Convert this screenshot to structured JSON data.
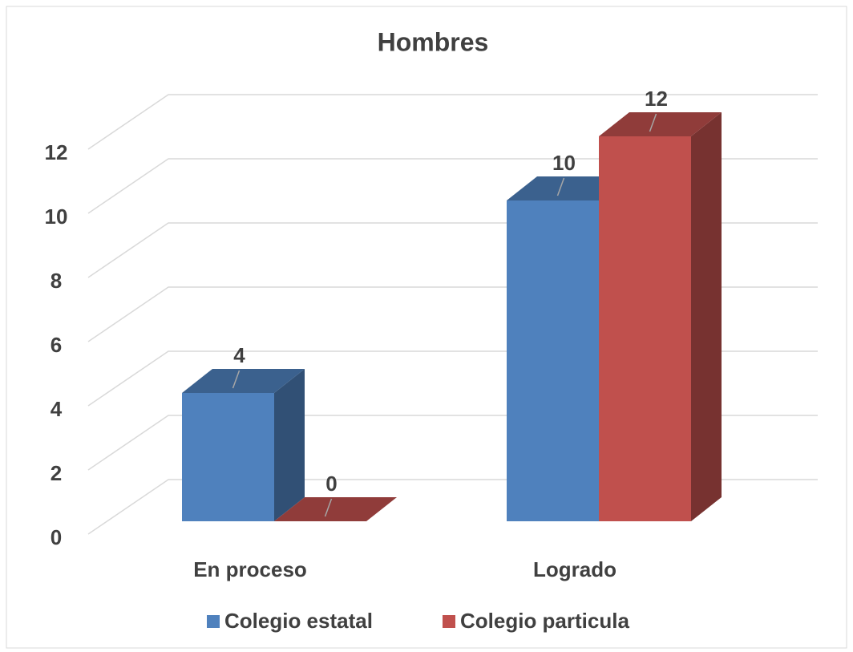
{
  "chart_data": {
    "type": "bar3d",
    "title": "Hombres",
    "categories": [
      "En proceso",
      "Logrado"
    ],
    "series": [
      {
        "name": "Colegio estatal",
        "color": "#4f81bd",
        "values": [
          4,
          10
        ]
      },
      {
        "name": "Colegio particula",
        "color": "#c0504d",
        "values": [
          0,
          12
        ]
      }
    ],
    "ylim": [
      0,
      12
    ],
    "yticks": [
      0,
      2,
      4,
      6,
      8,
      10,
      12
    ],
    "grid": true,
    "legend": "bottom"
  }
}
